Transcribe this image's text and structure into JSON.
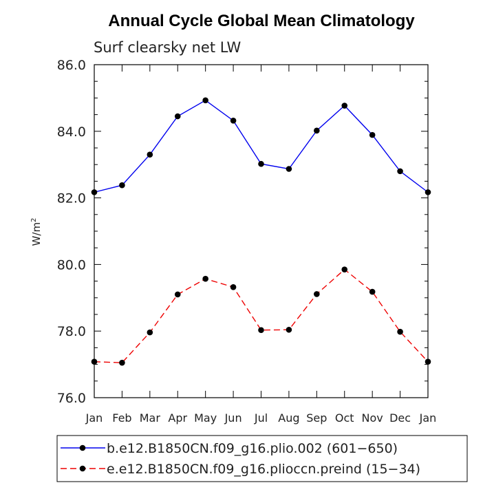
{
  "chart_data": {
    "type": "line",
    "title": "Annual Cycle Global Mean Climatology",
    "subtitle": "Surf clearsky net LW",
    "ylabel": "W/m",
    "ylabel_superscript": "2",
    "ylim": [
      76.0,
      86.0
    ],
    "yticks": [
      76.0,
      78.0,
      80.0,
      82.0,
      84.0,
      86.0
    ],
    "ytick_labels": [
      "76.0",
      "78.0",
      "80.0",
      "82.0",
      "84.0",
      "86.0"
    ],
    "categories": [
      "Jan",
      "Feb",
      "Mar",
      "Apr",
      "May",
      "Jun",
      "Jul",
      "Aug",
      "Sep",
      "Oct",
      "Nov",
      "Dec",
      "Jan"
    ],
    "series": [
      {
        "name": "b.e12.B1850CN.f09_g16.plio.002 (601−650)",
        "color": "#0000ee",
        "dash": "solid",
        "marker": "circle",
        "values": [
          82.17,
          82.38,
          83.3,
          84.45,
          84.93,
          84.32,
          83.02,
          82.87,
          84.02,
          84.77,
          83.89,
          82.8,
          82.17
        ]
      },
      {
        "name": "e.e12.B1850CN.f09_g16.plioccn.preind (15−34)",
        "color": "#ee0000",
        "dash": "dashed",
        "marker": "circle",
        "values": [
          77.08,
          77.05,
          77.96,
          79.1,
          79.57,
          79.32,
          78.03,
          78.04,
          79.11,
          79.85,
          79.18,
          77.98,
          77.08
        ]
      }
    ]
  }
}
